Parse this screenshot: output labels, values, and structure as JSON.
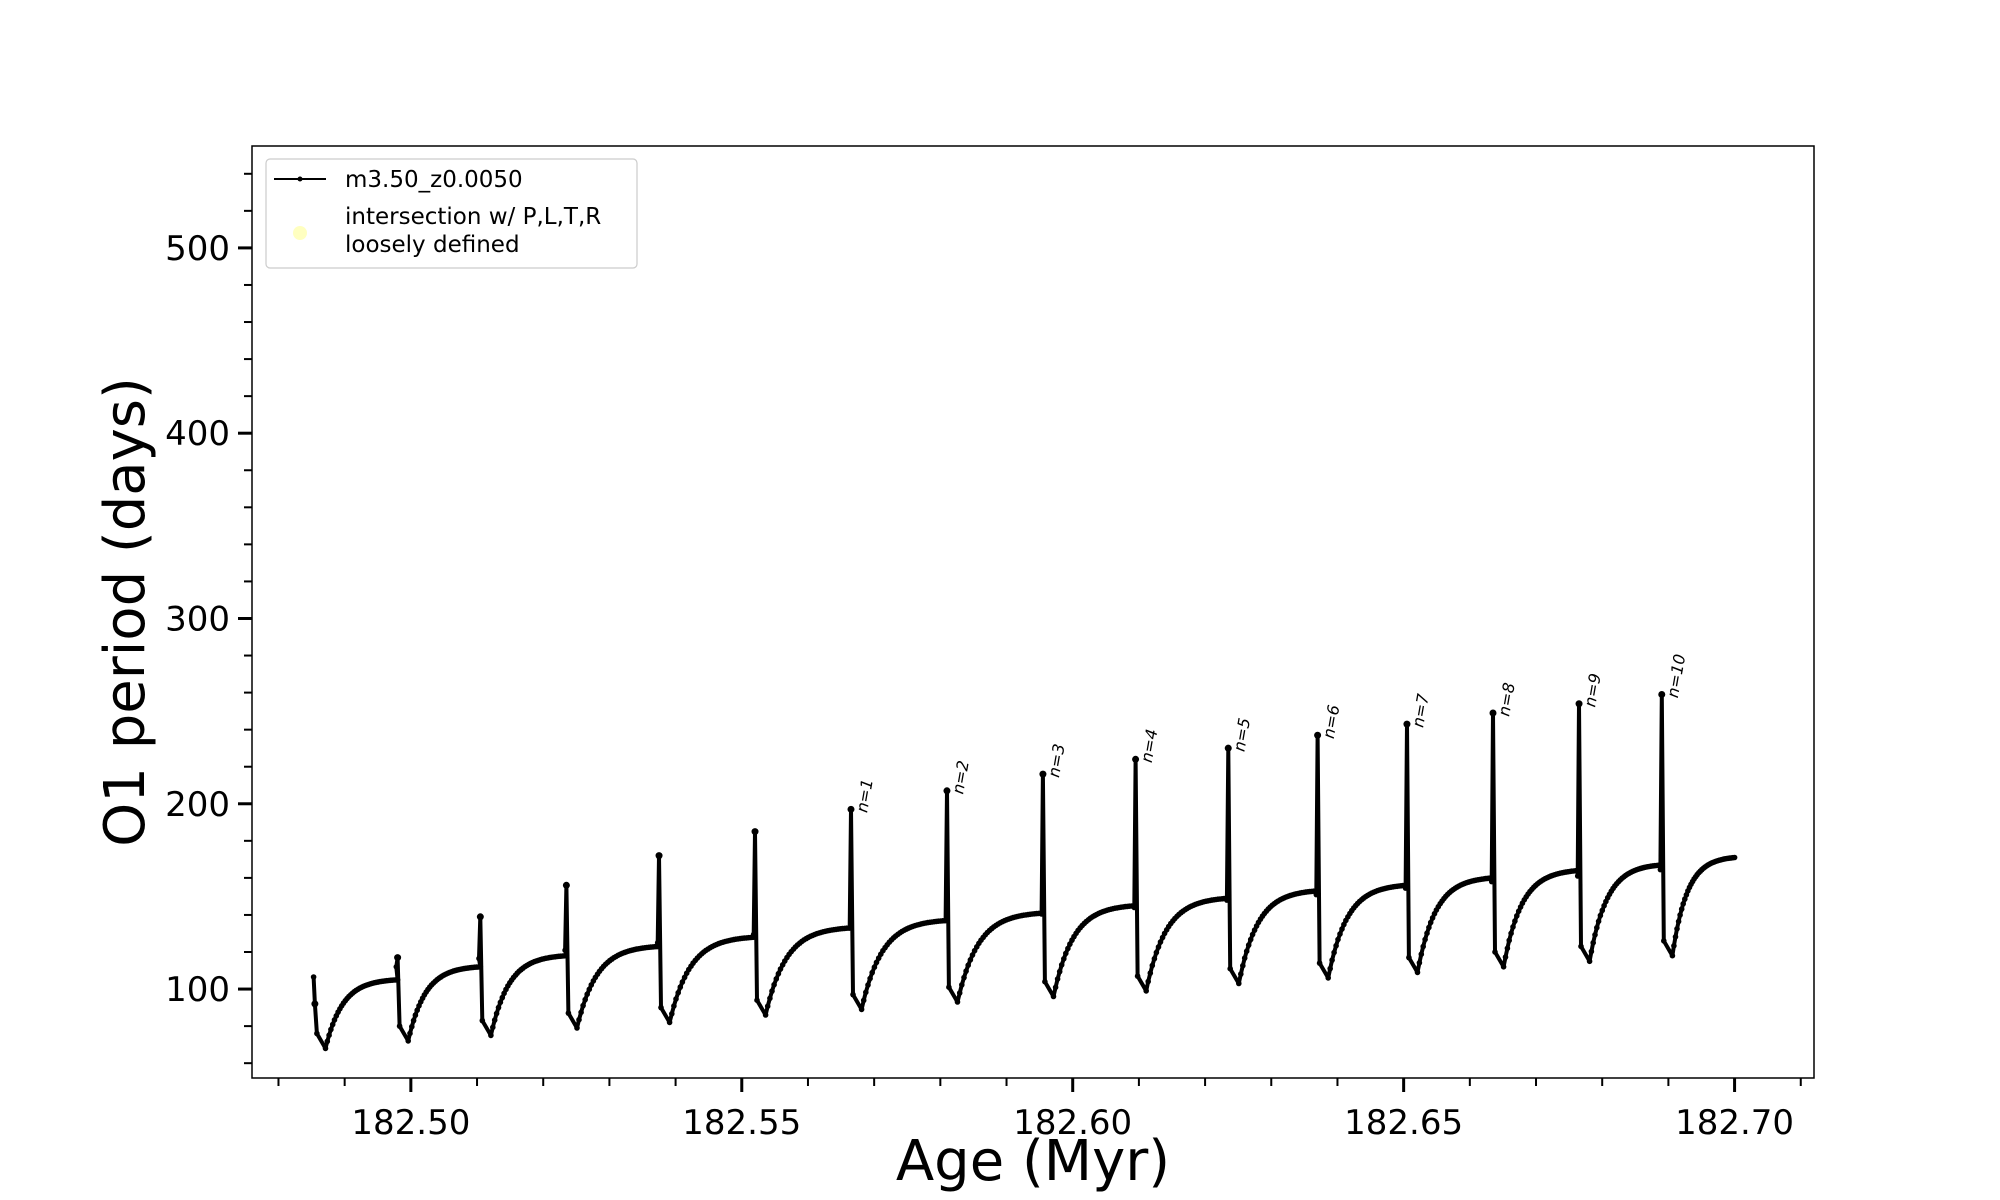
{
  "chart_data": {
    "type": "line",
    "title": "",
    "xlabel": "Age (Myr)",
    "ylabel": "O1 period (days)",
    "xlim": [
      182.476,
      182.712
    ],
    "ylim": [
      52,
      555
    ],
    "x_ticks": [
      "182.50",
      "182.55",
      "182.60",
      "182.65",
      "182.70"
    ],
    "x_tick_values": [
      182.5,
      182.55,
      182.6,
      182.65,
      182.7
    ],
    "y_ticks": [
      "100",
      "200",
      "300",
      "400",
      "500"
    ],
    "y_tick_values": [
      100,
      200,
      300,
      400,
      500
    ],
    "grid": false,
    "legend_position": "top-left",
    "series": [
      {
        "name": "m3.50_z0.0050",
        "color": "#000000",
        "marker": "dot"
      }
    ],
    "legend_extra": {
      "label": "intersection w/ P,L,T,R\nloosely defined",
      "color": "#ffffc0"
    },
    "end_point": {
      "x": 182.7,
      "y": 171
    },
    "pulses": [
      {
        "x": 182.4855,
        "spike": 92,
        "drop": 68,
        "plateau": 105,
        "label": ""
      },
      {
        "x": 182.498,
        "spike": 117,
        "drop": 72,
        "plateau": 112,
        "label": ""
      },
      {
        "x": 182.5105,
        "spike": 139,
        "drop": 75,
        "plateau": 118,
        "label": ""
      },
      {
        "x": 182.5235,
        "spike": 156,
        "drop": 79,
        "plateau": 123,
        "label": ""
      },
      {
        "x": 182.5375,
        "spike": 172,
        "drop": 82,
        "plateau": 128,
        "label": ""
      },
      {
        "x": 182.552,
        "spike": 185,
        "drop": 86,
        "plateau": 133,
        "label": ""
      },
      {
        "x": 182.5665,
        "spike": 197,
        "drop": 89,
        "plateau": 137,
        "label": "n=1"
      },
      {
        "x": 182.581,
        "spike": 207,
        "drop": 93,
        "plateau": 141,
        "label": "n=2"
      },
      {
        "x": 182.5955,
        "spike": 216,
        "drop": 96,
        "plateau": 145,
        "label": "n=3"
      },
      {
        "x": 182.6095,
        "spike": 224,
        "drop": 99,
        "plateau": 149,
        "label": "n=4"
      },
      {
        "x": 182.6235,
        "spike": 230,
        "drop": 103,
        "plateau": 153,
        "label": "n=5"
      },
      {
        "x": 182.637,
        "spike": 237,
        "drop": 106,
        "plateau": 156,
        "label": "n=6"
      },
      {
        "x": 182.6505,
        "spike": 243,
        "drop": 109,
        "plateau": 160,
        "label": "n=7"
      },
      {
        "x": 182.6635,
        "spike": 249,
        "drop": 112,
        "plateau": 164,
        "label": "n=8"
      },
      {
        "x": 182.6765,
        "spike": 254,
        "drop": 115,
        "plateau": 167,
        "label": "n=9"
      },
      {
        "x": 182.689,
        "spike": 259,
        "drop": 118,
        "plateau": 171,
        "label": "n=10"
      }
    ]
  }
}
